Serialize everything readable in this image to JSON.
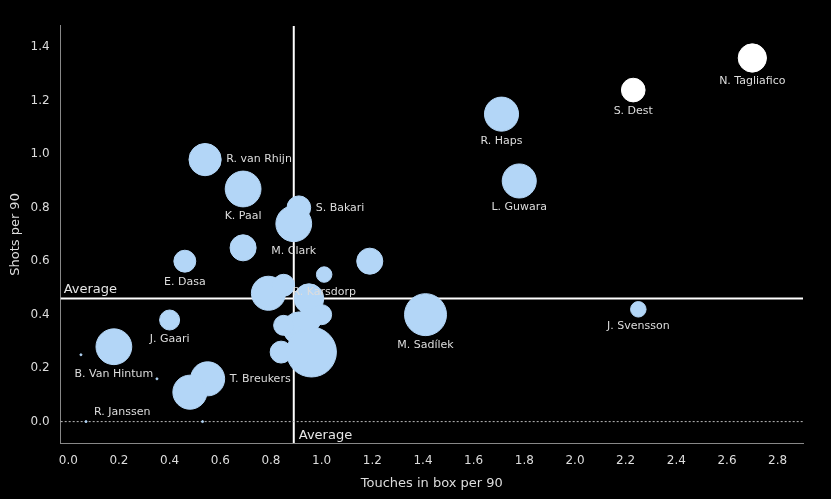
{
  "chart_data": {
    "type": "bubble",
    "x_label": "Touches in box per 90",
    "y_label": "Shots per 90",
    "xlim": [
      -0.03,
      2.9
    ],
    "ylim": [
      -0.08,
      1.48
    ],
    "xticks": [
      {
        "value": 0,
        "label": "0.0"
      },
      0.2,
      0.4,
      0.6,
      0.8,
      {
        "value": 1,
        "label": "1.0"
      },
      1.2,
      1.4,
      1.6,
      1.8,
      {
        "value": 2,
        "label": "2.0"
      },
      2.2,
      2.4,
      2.6,
      2.8
    ],
    "yticks": [
      {
        "value": 0,
        "label": "0.0"
      },
      0.2,
      0.4,
      0.6,
      0.8,
      {
        "value": 1,
        "label": "1.0"
      },
      1.2,
      1.4
    ],
    "grid": false,
    "reference_lines": [
      {
        "axis": "x",
        "value": 0.89,
        "label": "Average",
        "line_style": "solid"
      },
      {
        "axis": "y",
        "value": 0.46,
        "label": "Average",
        "line_style": "solid"
      },
      {
        "axis": "y",
        "value": 0,
        "line_style": "dotted"
      }
    ],
    "labels": [
      "R. van Rhijn",
      "K. Paal",
      "S. Bakari",
      "M. Clark",
      null,
      "E. Dasa",
      "R. Karsdorp",
      null,
      "R. Haps",
      "L. Guwara",
      "S. Dest",
      "N. Tagliafico",
      "J. Svensson",
      "M. Sadílek",
      "J. Gaari",
      "B. Van Hintum",
      null,
      null,
      "R. Janssen",
      "T. Breukers",
      null,
      null,
      null,
      null,
      null,
      null,
      null,
      null,
      null,
      null,
      null
    ],
    "x": [
      0.54,
      0.69,
      0.91,
      0.89,
      0.69,
      0.46,
      1.01,
      1.19,
      1.71,
      1.78,
      2.23,
      2.7,
      2.25,
      1.41,
      0.4,
      0.18,
      0.35,
      0.05,
      0.07,
      0.55,
      0.48,
      0.79,
      0.85,
      0.95,
      1.0,
      0.91,
      0.85,
      0.84,
      0.96,
      0.95,
      0.53
    ],
    "y": [
      0.98,
      0.87,
      0.8,
      0.74,
      0.65,
      0.6,
      0.55,
      0.6,
      1.15,
      0.9,
      1.24,
      1.36,
      0.42,
      0.4,
      0.38,
      0.28,
      0.16,
      0.25,
      0.0,
      0.16,
      0.11,
      0.48,
      0.51,
      0.46,
      0.4,
      0.35,
      0.36,
      0.26,
      0.26,
      0.38,
      0.0
    ],
    "sizes": [
      26,
      32,
      14,
      32,
      17,
      12,
      6,
      17,
      29,
      29,
      14,
      20,
      6,
      44,
      10,
      32,
      0.1,
      0.1,
      0.1,
      29,
      29,
      29,
      12,
      22,
      10,
      26,
      10,
      12,
      62,
      14,
      0.1
    ],
    "colors": [
      "#b3d6f7",
      "#b3d6f7",
      "#b3d6f7",
      "#b3d6f7",
      "#b3d6f7",
      "#b3d6f7",
      "#b3d6f7",
      "#b3d6f7",
      "#b3d6f7",
      "#b3d6f7",
      "#ffffff",
      "#ffffff",
      "#b3d6f7",
      "#b3d6f7",
      "#b3d6f7",
      "#b3d6f7",
      "#b3d6f7",
      "#b3d6f7",
      "#b3d6f7",
      "#b3d6f7",
      "#b3d6f7",
      "#b3d6f7",
      "#b3d6f7",
      "#b3d6f7",
      "#b3d6f7",
      "#b3d6f7",
      "#b3d6f7",
      "#b3d6f7",
      "#b3d6f7",
      "#b3d6f7",
      "#b3d6f7"
    ]
  }
}
